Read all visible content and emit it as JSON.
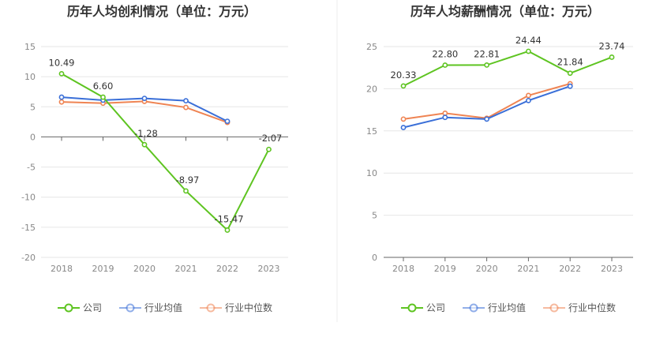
{
  "chart_data": [
    {
      "type": "line",
      "title": "历年人均创利情况（单位：万元）",
      "categories": [
        "2018",
        "2019",
        "2020",
        "2021",
        "2022",
        "2023"
      ],
      "ylim": [
        -20,
        15
      ],
      "yticks": [
        15,
        10,
        5,
        0,
        -5,
        -10,
        -15,
        -20
      ],
      "grid": true,
      "legend_position": "bottom",
      "series": [
        {
          "name": "公司",
          "color": "#5ec421",
          "values": [
            10.49,
            6.6,
            -1.28,
            -8.97,
            -15.47,
            -2.07
          ],
          "labels": [
            "10.49",
            "6.60",
            "-1.28",
            "-8.97",
            "-15.47",
            "-2.07"
          ]
        },
        {
          "name": "行业均值",
          "color": "#3a6fd8",
          "values": [
            6.6,
            6.1,
            6.4,
            6.0,
            2.6,
            null
          ]
        },
        {
          "name": "行业中位数",
          "color": "#ef8453",
          "values": [
            5.8,
            5.6,
            5.9,
            4.9,
            2.4,
            null
          ]
        }
      ]
    },
    {
      "type": "line",
      "title": "历年人均薪酬情况（单位：万元）",
      "categories": [
        "2018",
        "2019",
        "2020",
        "2021",
        "2022",
        "2023"
      ],
      "ylim": [
        0,
        25
      ],
      "yticks": [
        25,
        20,
        15,
        10,
        5,
        0
      ],
      "grid": true,
      "legend_position": "bottom",
      "series": [
        {
          "name": "公司",
          "color": "#5ec421",
          "values": [
            20.33,
            22.8,
            22.81,
            24.44,
            21.84,
            23.74
          ],
          "labels": [
            "20.33",
            "22.80",
            "22.81",
            "24.44",
            "21.84",
            "23.74"
          ]
        },
        {
          "name": "行业均值",
          "color": "#3a6fd8",
          "values": [
            15.4,
            16.6,
            16.4,
            18.6,
            20.3,
            null
          ]
        },
        {
          "name": "行业中位数",
          "color": "#ef8453",
          "values": [
            16.4,
            17.1,
            16.5,
            19.2,
            20.6,
            null
          ]
        }
      ]
    }
  ]
}
